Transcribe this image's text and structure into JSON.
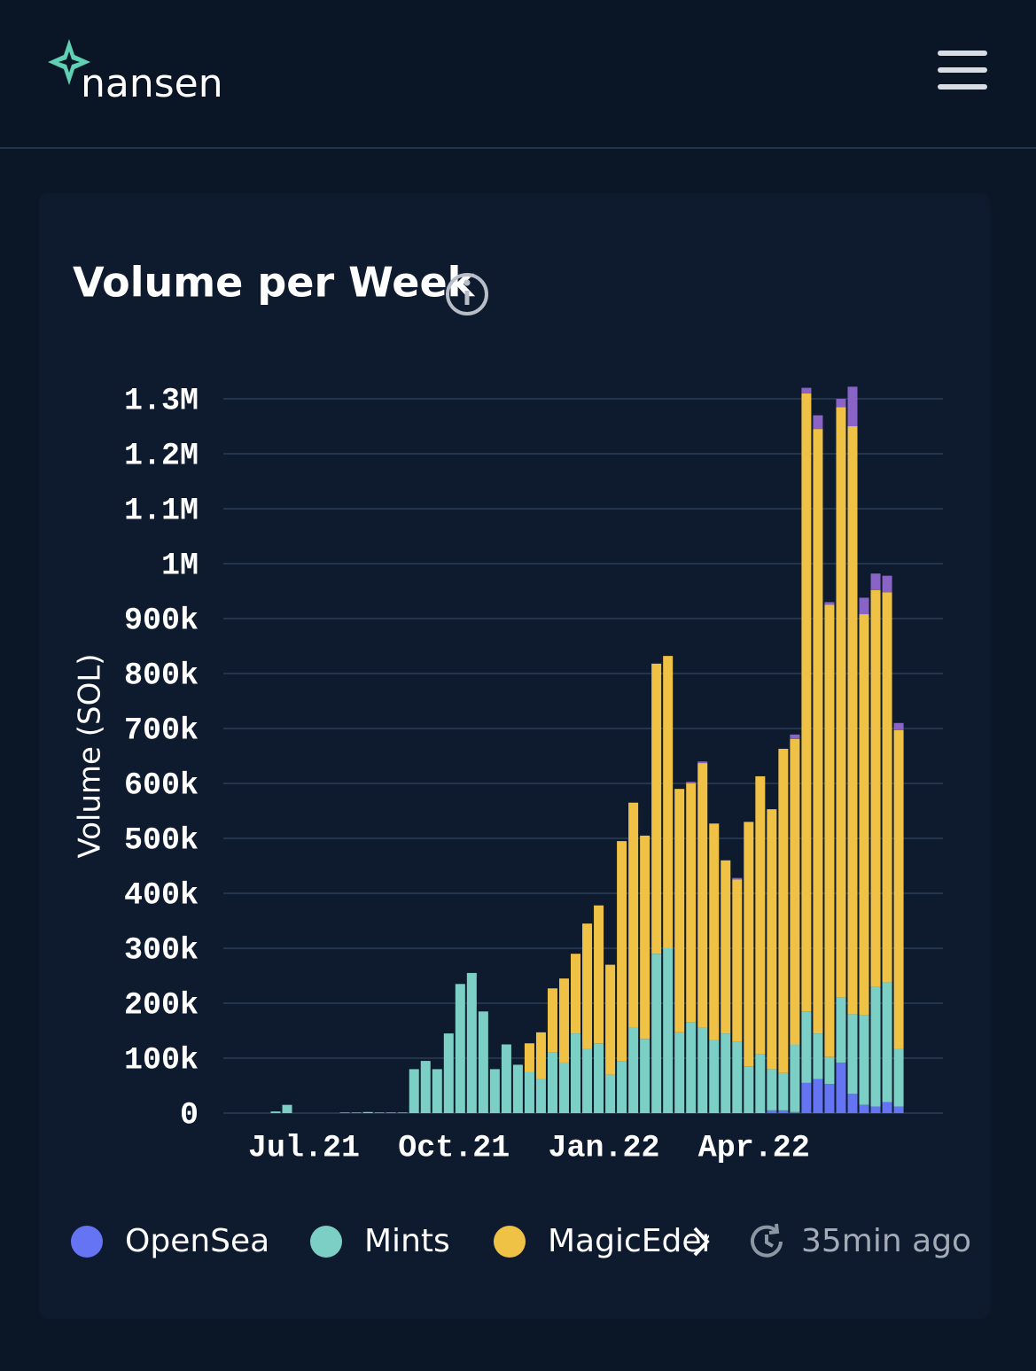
{
  "header": {
    "logo": "nansen"
  },
  "chart_data": {
    "type": "stacked-bar",
    "title": "Volume per Week",
    "y_label": "Volume (SOL)",
    "updated": "35min ago",
    "categories": [
      null,
      null,
      "Jul.21",
      null,
      null,
      null,
      null,
      null,
      null,
      null,
      null,
      null,
      null,
      null,
      null,
      "Oct.21",
      null,
      null,
      null,
      null,
      null,
      null,
      null,
      null,
      null,
      null,
      null,
      null,
      "Jan.22",
      null,
      null,
      null,
      null,
      null,
      null,
      null,
      null,
      null,
      null,
      null,
      null,
      "Apr.22",
      null,
      null,
      null,
      null,
      null,
      null,
      null,
      null,
      null,
      null,
      null,
      null,
      null
    ],
    "series": [
      {
        "name": "OpenSea",
        "color": "#6574f2",
        "values": [
          0,
          0,
          0,
          0,
          0,
          0,
          0,
          0,
          0,
          0,
          0,
          0,
          0,
          0,
          0,
          0,
          0,
          0,
          0,
          0,
          0,
          0,
          0,
          0,
          0,
          0,
          0,
          0,
          0,
          0,
          0,
          0,
          0,
          0,
          0,
          0,
          0,
          0,
          0,
          0,
          0,
          0,
          0,
          5000,
          5000,
          2000,
          55000,
          62000,
          53000,
          92000,
          35000,
          15000,
          12000,
          20000,
          12000
        ]
      },
      {
        "name": "Mints",
        "color": "#7ccfc4",
        "values": [
          3000,
          15000,
          0,
          0,
          0,
          0,
          1000,
          1000,
          2000,
          1000,
          1000,
          1000,
          80000,
          95000,
          80000,
          145000,
          235000,
          255000,
          185000,
          80000,
          125000,
          88000,
          75000,
          62000,
          110000,
          92000,
          145000,
          117000,
          127000,
          70000,
          95000,
          155000,
          135000,
          290000,
          300000,
          147000,
          165000,
          155000,
          133000,
          145000,
          130000,
          85000,
          107000,
          75000,
          68000,
          123000,
          130000,
          83000,
          49000,
          118000,
          145000,
          163000,
          218000,
          218000,
          105000
        ]
      },
      {
        "name": "MagicEden",
        "color": "#efc145",
        "values": [
          0,
          0,
          0,
          0,
          0,
          0,
          0,
          0,
          0,
          0,
          0,
          0,
          0,
          0,
          0,
          0,
          0,
          0,
          0,
          0,
          0,
          0,
          52000,
          85000,
          117000,
          153000,
          145000,
          228000,
          251000,
          200000,
          400000,
          410000,
          370000,
          528000,
          532000,
          443000,
          435000,
          482000,
          394000,
          315000,
          295000,
          445000,
          506000,
          473000,
          590000,
          556000,
          1125000,
          1100000,
          823000,
          1075000,
          1070000,
          730000,
          722000,
          710000,
          580000
        ]
      },
      {
        "color": "#8a63c6",
        "values": [
          0,
          0,
          0,
          0,
          0,
          0,
          0,
          0,
          0,
          0,
          0,
          0,
          0,
          0,
          0,
          0,
          0,
          0,
          0,
          0,
          0,
          0,
          0,
          0,
          0,
          0,
          0,
          0,
          0,
          0,
          0,
          0,
          0,
          0,
          0,
          0,
          3000,
          3000,
          0,
          0,
          3000,
          0,
          0,
          0,
          0,
          8000,
          10000,
          25000,
          5000,
          15000,
          72000,
          30000,
          30000,
          30000,
          13000
        ]
      }
    ],
    "ylim": [
      0,
      1300000
    ],
    "yticks": [
      0,
      {
        "value": 100000,
        "label": "100k"
      },
      {
        "value": 200000,
        "label": "200k"
      },
      {
        "value": 300000,
        "label": "300k"
      },
      {
        "value": 400000,
        "label": "400k"
      },
      {
        "value": 500000,
        "label": "500k"
      },
      {
        "value": 600000,
        "label": "600k"
      },
      {
        "value": 700000,
        "label": "700k"
      },
      {
        "value": 800000,
        "label": "800k"
      },
      {
        "value": 900000,
        "label": "900k"
      },
      {
        "value": 1000000,
        "label": "1M"
      },
      {
        "value": 1100000,
        "label": "1.1M"
      },
      {
        "value": 1200000,
        "label": "1.2M"
      },
      {
        "value": 1300000,
        "label": "1.3M"
      }
    ],
    "grid": true
  }
}
